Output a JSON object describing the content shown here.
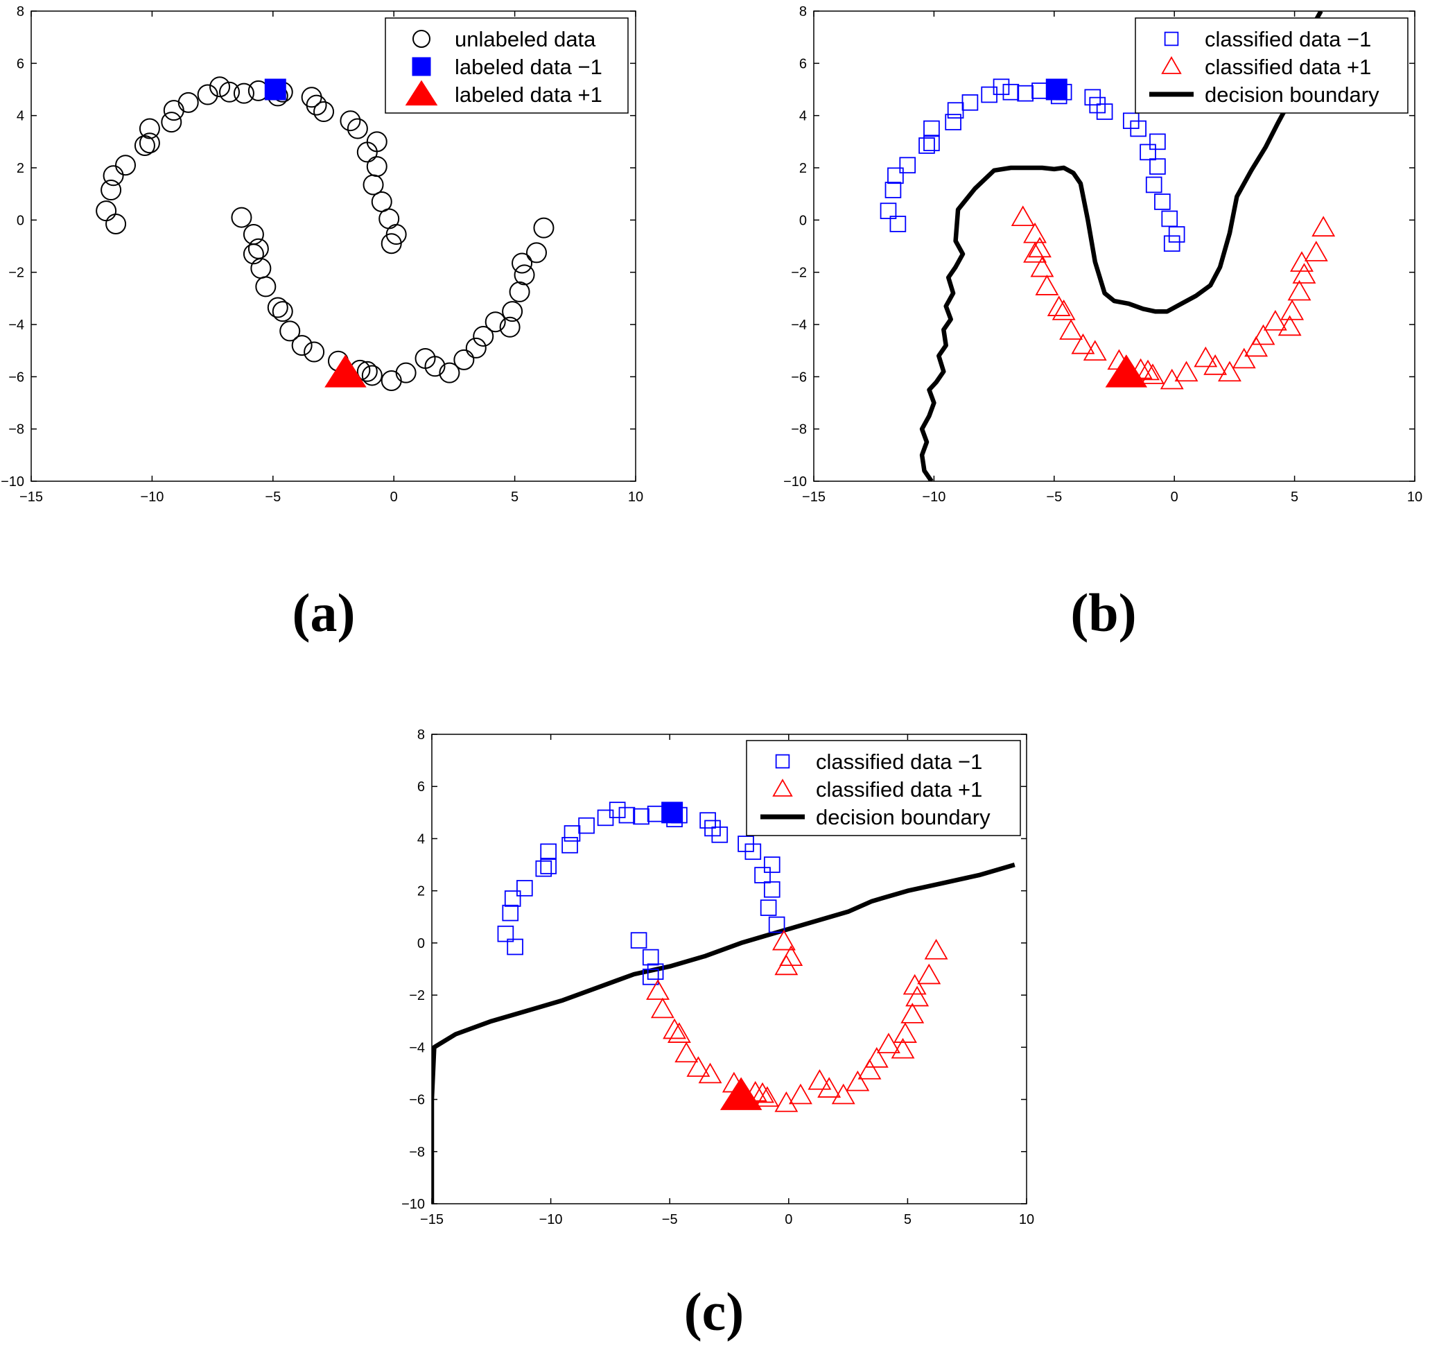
{
  "figure": {
    "description_free": true
  },
  "chart_data": [
    {
      "id": "a",
      "type": "scatter",
      "caption": "(a)",
      "xlim": [
        -15,
        10
      ],
      "ylim": [
        -10,
        8
      ],
      "xticks": [
        "−15",
        "−10",
        "−5",
        "0",
        "5",
        "10"
      ],
      "yticks": [
        "−10",
        "−8",
        "−6",
        "−4",
        "−2",
        "0",
        "2",
        "4",
        "6",
        "8"
      ],
      "legend_position": "top-right",
      "legend": [
        {
          "label": "unlabeled data",
          "marker": "circle-open",
          "color": "#000000"
        },
        {
          "label": "labeled data −1",
          "marker": "square-filled",
          "color": "#0000ff"
        },
        {
          "label": "labeled data +1",
          "marker": "triangle-filled",
          "color": "#ff0000"
        }
      ]
    },
    {
      "id": "b",
      "type": "scatter",
      "caption": "(b)",
      "xlim": [
        -15,
        10
      ],
      "ylim": [
        -10,
        8
      ],
      "xticks": [
        "−15",
        "−10",
        "−5",
        "0",
        "5",
        "10"
      ],
      "yticks": [
        "−10",
        "−8",
        "−6",
        "−4",
        "−2",
        "0",
        "2",
        "4",
        "6",
        "8"
      ],
      "legend_position": "top-right",
      "legend": [
        {
          "label": "classified data −1",
          "marker": "square-open",
          "color": "#0000ff"
        },
        {
          "label": "classified data +1",
          "marker": "triangle-open",
          "color": "#ff0000"
        },
        {
          "label": "decision boundary",
          "marker": "line",
          "color": "#000000"
        }
      ],
      "boundary": [
        [
          -10.1,
          -10
        ],
        [
          -10.4,
          -9.6
        ],
        [
          -10.5,
          -9.0
        ],
        [
          -10.3,
          -8.5
        ],
        [
          -10.5,
          -8.0
        ],
        [
          -10.2,
          -7.5
        ],
        [
          -10.0,
          -7.0
        ],
        [
          -10.2,
          -6.5
        ],
        [
          -9.9,
          -6.2
        ],
        [
          -9.6,
          -5.8
        ],
        [
          -9.8,
          -5.2
        ],
        [
          -9.5,
          -4.8
        ],
        [
          -9.6,
          -4.2
        ],
        [
          -9.3,
          -3.8
        ],
        [
          -9.5,
          -3.3
        ],
        [
          -9.2,
          -2.8
        ],
        [
          -9.4,
          -2.2
        ],
        [
          -9.1,
          -1.8
        ],
        [
          -8.8,
          -1.3
        ],
        [
          -9.1,
          -0.8
        ],
        [
          -9.0,
          0.4
        ],
        [
          -8.3,
          1.2
        ],
        [
          -7.5,
          1.9
        ],
        [
          -6.8,
          2.0
        ],
        [
          -6.0,
          2.0
        ],
        [
          -5.5,
          2.0
        ],
        [
          -5.0,
          1.95
        ],
        [
          -4.6,
          2.0
        ],
        [
          -4.2,
          1.8
        ],
        [
          -3.9,
          1.4
        ],
        [
          -3.6,
          0.0
        ],
        [
          -3.3,
          -1.6
        ],
        [
          -2.9,
          -2.8
        ],
        [
          -2.5,
          -3.1
        ],
        [
          -1.9,
          -3.2
        ],
        [
          -1.3,
          -3.4
        ],
        [
          -0.8,
          -3.5
        ],
        [
          -0.3,
          -3.5
        ],
        [
          0.3,
          -3.2
        ],
        [
          0.9,
          -2.9
        ],
        [
          1.5,
          -2.5
        ],
        [
          1.9,
          -1.8
        ],
        [
          2.3,
          -0.5
        ],
        [
          2.6,
          0.9
        ],
        [
          3.2,
          1.9
        ],
        [
          3.8,
          2.8
        ],
        [
          4.3,
          3.7
        ],
        [
          5.0,
          4.9
        ],
        [
          5.6,
          6.7
        ],
        [
          5.8,
          7.5
        ],
        [
          6.1,
          8.0
        ]
      ]
    },
    {
      "id": "c",
      "type": "scatter",
      "caption": "(c)",
      "xlim": [
        -15,
        10
      ],
      "ylim": [
        -10,
        8
      ],
      "xticks": [
        "−15",
        "−10",
        "−5",
        "0",
        "5",
        "10"
      ],
      "yticks": [
        "−10",
        "−8",
        "−6",
        "−4",
        "−2",
        "0",
        "2",
        "4",
        "6",
        "8"
      ],
      "legend_position": "top-right",
      "legend": [
        {
          "label": "classified data −1",
          "marker": "square-open",
          "color": "#0000ff"
        },
        {
          "label": "classified data +1",
          "marker": "triangle-open",
          "color": "#ff0000"
        },
        {
          "label": "decision boundary",
          "marker": "line",
          "color": "#000000"
        }
      ],
      "boundary": [
        [
          -15,
          -10
        ],
        [
          -15,
          -6.0
        ],
        [
          -14.9,
          -4.0
        ],
        [
          -14.0,
          -3.5
        ],
        [
          -12.5,
          -3.0
        ],
        [
          -11.0,
          -2.6
        ],
        [
          -9.5,
          -2.2
        ],
        [
          -8.0,
          -1.7
        ],
        [
          -6.5,
          -1.2
        ],
        [
          -5.0,
          -0.9
        ],
        [
          -3.5,
          -0.5
        ],
        [
          -2.0,
          0.0
        ],
        [
          -0.5,
          0.4
        ],
        [
          1.0,
          0.8
        ],
        [
          2.5,
          1.2
        ],
        [
          3.5,
          1.6
        ],
        [
          5.0,
          2.0
        ],
        [
          6.5,
          2.3
        ],
        [
          8.0,
          2.6
        ],
        [
          9.5,
          3.0
        ]
      ]
    }
  ],
  "points": {
    "upper_moon": [
      [
        -11.9,
        0.35
      ],
      [
        -11.5,
        -0.15
      ],
      [
        -11.7,
        1.15
      ],
      [
        -11.6,
        1.7
      ],
      [
        -11.1,
        2.1
      ],
      [
        -10.3,
        2.85
      ],
      [
        -10.1,
        2.95
      ],
      [
        -10.1,
        3.5
      ],
      [
        -9.2,
        3.75
      ],
      [
        -9.1,
        4.2
      ],
      [
        -8.5,
        4.5
      ],
      [
        -7.7,
        4.8
      ],
      [
        -7.2,
        5.1
      ],
      [
        -6.8,
        4.9
      ],
      [
        -6.2,
        4.85
      ],
      [
        -5.6,
        4.95
      ],
      [
        -4.8,
        4.75
      ],
      [
        -4.6,
        4.9
      ],
      [
        -3.4,
        4.7
      ],
      [
        -3.2,
        4.4
      ],
      [
        -2.9,
        4.15
      ],
      [
        -1.8,
        3.8
      ],
      [
        -1.5,
        3.5
      ],
      [
        -1.1,
        2.6
      ],
      [
        -0.7,
        3.0
      ],
      [
        -0.7,
        2.05
      ],
      [
        -0.85,
        1.35
      ],
      [
        -0.5,
        0.7
      ],
      [
        -0.2,
        0.05
      ],
      [
        0.1,
        -0.55
      ],
      [
        -0.1,
        -0.9
      ]
    ],
    "lower_moon": [
      [
        -6.3,
        0.1
      ],
      [
        -5.8,
        -0.55
      ],
      [
        -5.8,
        -1.3
      ],
      [
        -5.6,
        -1.1
      ],
      [
        -5.5,
        -1.85
      ],
      [
        -5.3,
        -2.55
      ],
      [
        -4.8,
        -3.35
      ],
      [
        -4.6,
        -3.5
      ],
      [
        -4.3,
        -4.25
      ],
      [
        -3.8,
        -4.8
      ],
      [
        -3.3,
        -5.05
      ],
      [
        -2.3,
        -5.4
      ],
      [
        -1.4,
        -5.75
      ],
      [
        -1.1,
        -5.8
      ],
      [
        -0.9,
        -5.95
      ],
      [
        -0.1,
        -6.15
      ],
      [
        0.5,
        -5.85
      ],
      [
        1.3,
        -5.3
      ],
      [
        1.7,
        -5.6
      ],
      [
        2.3,
        -5.85
      ],
      [
        2.9,
        -5.35
      ],
      [
        3.4,
        -4.9
      ],
      [
        3.7,
        -4.45
      ],
      [
        4.2,
        -3.9
      ],
      [
        4.8,
        -4.1
      ],
      [
        4.9,
        -3.5
      ],
      [
        5.2,
        -2.75
      ],
      [
        5.4,
        -2.1
      ],
      [
        5.3,
        -1.65
      ],
      [
        5.9,
        -1.25
      ],
      [
        6.2,
        -0.3
      ]
    ],
    "labeled_neg": [
      [
        -4.9,
        5.0
      ]
    ],
    "labeled_pos": [
      [
        -2.0,
        -5.85
      ]
    ]
  }
}
